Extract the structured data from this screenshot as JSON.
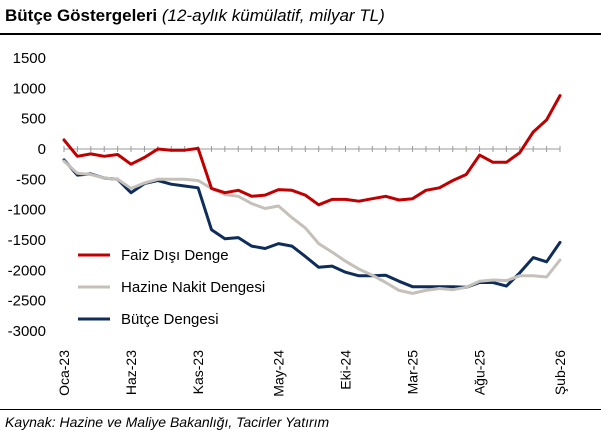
{
  "header": {
    "title_bold": "Bütçe Göstergeleri",
    "title_italic": "(12-aylık kümülatif, milyar TL)"
  },
  "footer": {
    "source": "Kaynak: Hazine ve Maliye Bakanlığı, Tacirler Yatırım"
  },
  "chart_data": {
    "type": "line",
    "title": "Bütçe Göstergeleri (12-aylık kümülatif, milyar TL)",
    "xlabel": "",
    "ylabel": "",
    "ylim": [
      -3000,
      1500
    ],
    "yticks": [
      1500,
      1000,
      500,
      0,
      -500,
      -1000,
      -1500,
      -2000,
      -2500,
      -3000
    ],
    "grid": false,
    "legend_position": "bottom-left",
    "x": [
      "Oca-23",
      "Şub-23",
      "Mar-23",
      "Nis-23",
      "May-23",
      "Haz-23",
      "Tem-23",
      "Ağu-23",
      "Eyl-23",
      "Eki-23",
      "Kas-23",
      "Ara-23",
      "Oca-24",
      "Şub-24",
      "Mar-24",
      "Nis-24",
      "May-24",
      "Haz-24",
      "Tem-24",
      "Ağu-24",
      "Eyl-24",
      "Eki-24",
      "Kas-24",
      "Ara-24",
      "Oca-25",
      "Şub-25",
      "Mar-25",
      "Nis-25",
      "May-25",
      "Haz-25",
      "Tem-25",
      "Ağu-25",
      "Eyl-25",
      "Eki-25",
      "Kas-25",
      "Ara-25",
      "Oca-26",
      "Şub-26"
    ],
    "x_tick_labels": [
      "Oca-23",
      "Haz-23",
      "Kas-23",
      "May-24",
      "Eki-24",
      "Mar-25",
      "Ağu-25",
      "Şub-26"
    ],
    "x_tick_indices": [
      0,
      5,
      10,
      16,
      21,
      26,
      31,
      37
    ],
    "series": [
      {
        "name": "Faiz Dışı Denge",
        "color": "#C00000",
        "values": [
          150,
          -120,
          -80,
          -120,
          -90,
          -250,
          -140,
          0,
          -20,
          -20,
          10,
          -650,
          -720,
          -680,
          -780,
          -760,
          -670,
          -680,
          -760,
          -920,
          -830,
          -830,
          -860,
          -820,
          -780,
          -840,
          -820,
          -680,
          -640,
          -520,
          -420,
          -100,
          -220,
          -220,
          -60,
          280,
          480,
          880
        ]
      },
      {
        "name": "Hazine Nakit Dengesi",
        "color": "#C5C0B9",
        "values": [
          -200,
          -400,
          -420,
          -480,
          -500,
          -650,
          -560,
          -500,
          -500,
          -500,
          -520,
          -650,
          -750,
          -780,
          -900,
          -980,
          -940,
          -1130,
          -1300,
          -1560,
          -1700,
          -1850,
          -1980,
          -2080,
          -2200,
          -2330,
          -2380,
          -2330,
          -2300,
          -2320,
          -2280,
          -2180,
          -2160,
          -2170,
          -2090,
          -2090,
          -2110,
          -1830
        ]
      },
      {
        "name": "Bütçe Dengesi",
        "color": "#0F2D5A",
        "values": [
          -180,
          -430,
          -410,
          -480,
          -500,
          -720,
          -570,
          -520,
          -580,
          -610,
          -640,
          -1330,
          -1480,
          -1460,
          -1600,
          -1640,
          -1560,
          -1600,
          -1770,
          -1950,
          -1930,
          -2030,
          -2090,
          -2090,
          -2080,
          -2180,
          -2270,
          -2270,
          -2270,
          -2270,
          -2280,
          -2200,
          -2200,
          -2260,
          -2040,
          -1790,
          -1860,
          -1540
        ]
      }
    ]
  }
}
